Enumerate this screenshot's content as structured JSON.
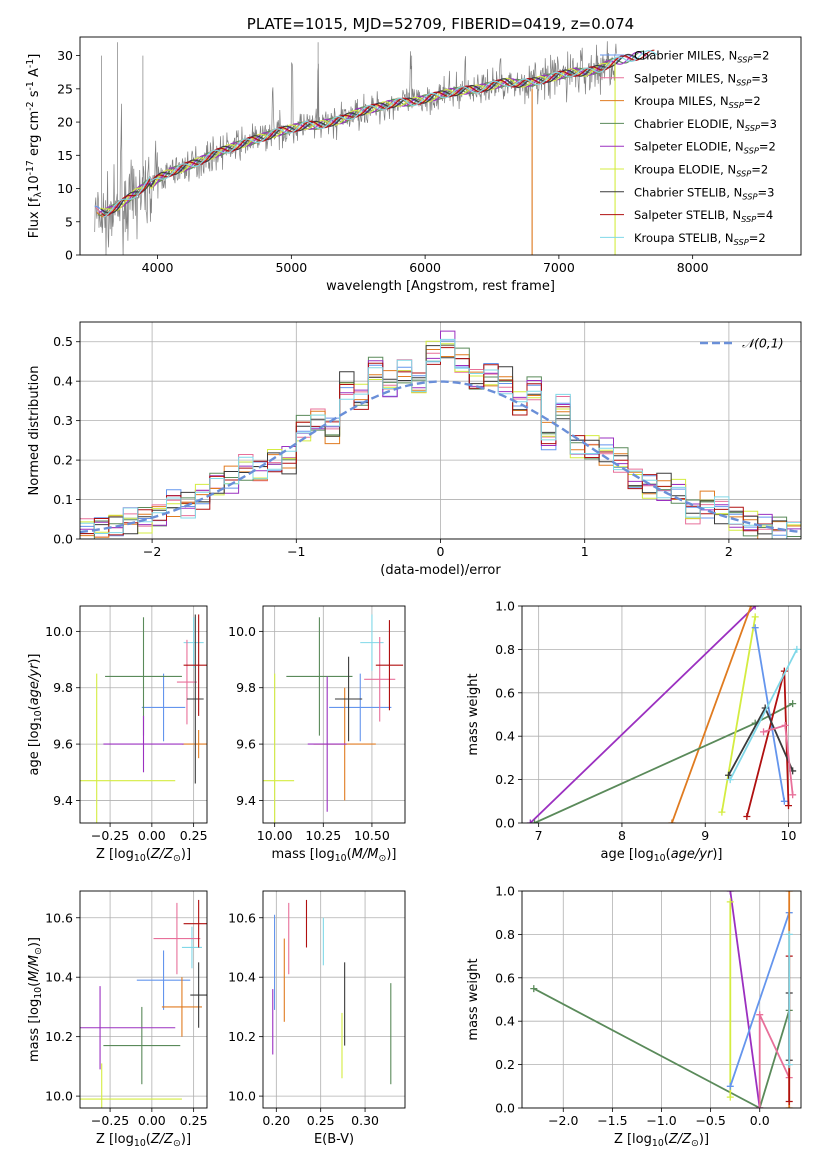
{
  "chart_data": [
    {
      "id": "spectrum",
      "type": "line",
      "title": "PLATE=1015, MJD=52709, FIBERID=0419, z=0.074",
      "xlabel": "wavelength [Angstrom, rest frame]",
      "ylabel": "Flux [f$_\\lambda$10$^{-17}$ erg cm$^{-2}$ s$^{-1}$ A$^{-1}$]",
      "xlim": [
        3420,
        8810
      ],
      "ylim": [
        0,
        32.8
      ],
      "xticks": [
        4000,
        5000,
        6000,
        7000,
        8000
      ],
      "yticks": [
        0,
        5,
        10,
        15,
        20,
        25,
        30
      ],
      "grid": false,
      "legend_position": "right",
      "continuum": {
        "x": [
          3530,
          3600,
          3700,
          3800,
          3900,
          4000,
          4100,
          4200,
          4300,
          4400,
          4500,
          4600,
          4700,
          4800,
          4900,
          5000,
          5100,
          5200,
          5300,
          5400,
          5500,
          5600,
          5700,
          5800,
          5900,
          6000,
          6100,
          6200,
          6300,
          6400,
          6500,
          6600,
          6700,
          6800,
          6900,
          7000,
          7100,
          7200,
          7300,
          7400,
          7500,
          7600,
          7700,
          7800,
          7900,
          8000,
          8100,
          8200
        ],
        "y": [
          6.0,
          5.5,
          6.5,
          8.0,
          9.5,
          11.5,
          12.5,
          13.2,
          14.0,
          15.0,
          15.8,
          16.5,
          17.2,
          17.8,
          18.5,
          19.0,
          19.5,
          19.5,
          20.0,
          20.5,
          21.5,
          22.0,
          22.5,
          23.0,
          23.0,
          23.5,
          24.0,
          24.5,
          24.8,
          25.0,
          25.5,
          26.0,
          25.8,
          26.0,
          26.5,
          27.0,
          27.5,
          27.5,
          28.0,
          29.0,
          29.5,
          30.0,
          30.2,
          30.5,
          30.8,
          31.0,
          31.0,
          31.0
        ]
      },
      "series": [
        {
          "name": "Chabrier MILES",
          "nssp": "2",
          "color": "#6495ed"
        },
        {
          "name": "Salpeter MILES",
          "nssp": "3",
          "color": "#e8709a"
        },
        {
          "name": "Kroupa MILES",
          "nssp": "2",
          "color": "#e07b20"
        },
        {
          "name": "Chabrier ELODIE",
          "nssp": "3",
          "color": "#5a8a5a"
        },
        {
          "name": "Salpeter ELODIE",
          "nssp": "2",
          "color": "#9b30c0"
        },
        {
          "name": "Kroupa ELODIE",
          "nssp": "2",
          "color": "#d4ec40"
        },
        {
          "name": "Chabrier STELIB",
          "nssp": "3",
          "color": "#3a3a3a"
        },
        {
          "name": "Salpeter STELIB",
          "nssp": "4",
          "color": "#b01010"
        },
        {
          "name": "Kroupa STELIB",
          "nssp": "2",
          "color": "#80d8e8"
        }
      ],
      "data_color": "#808080"
    },
    {
      "id": "residuals",
      "type": "line",
      "xlabel": "(data-model)/error",
      "ylabel": "Normed distribution",
      "xlim": [
        -2.5,
        2.5
      ],
      "ylim": [
        0,
        0.55
      ],
      "xticks": [
        -2,
        -1,
        0,
        1,
        2
      ],
      "yticks": [
        0.0,
        0.1,
        0.2,
        0.3,
        0.4,
        0.5
      ],
      "grid": true,
      "legend_position": "top-right",
      "reference": {
        "name": "$\\mathcal{N}(0,1)$",
        "color": "#6a8fd8"
      },
      "bin_centers": [
        -2.45,
        -2.35,
        -2.25,
        -2.15,
        -2.05,
        -1.95,
        -1.85,
        -1.75,
        -1.65,
        -1.55,
        -1.45,
        -1.35,
        -1.25,
        -1.15,
        -1.05,
        -0.95,
        -0.85,
        -0.75,
        -0.65,
        -0.55,
        -0.45,
        -0.35,
        -0.25,
        -0.15,
        -0.05,
        0.05,
        0.15,
        0.25,
        0.35,
        0.45,
        0.55,
        0.65,
        0.75,
        0.85,
        0.95,
        1.05,
        1.15,
        1.25,
        1.35,
        1.45,
        1.55,
        1.65,
        1.75,
        1.85,
        1.95,
        2.05,
        2.15,
        2.25,
        2.35,
        2.45
      ],
      "histogram": [
        0.02,
        0.03,
        0.04,
        0.05,
        0.05,
        0.06,
        0.09,
        0.09,
        0.11,
        0.14,
        0.15,
        0.18,
        0.17,
        0.2,
        0.2,
        0.28,
        0.3,
        0.27,
        0.39,
        0.36,
        0.43,
        0.39,
        0.42,
        0.39,
        0.47,
        0.49,
        0.45,
        0.4,
        0.41,
        0.4,
        0.34,
        0.38,
        0.26,
        0.33,
        0.23,
        0.23,
        0.22,
        0.2,
        0.15,
        0.13,
        0.13,
        0.12,
        0.07,
        0.09,
        0.07,
        0.05,
        0.04,
        0.03,
        0.03,
        0.02
      ]
    },
    {
      "id": "age-vs-Z",
      "type": "scatter",
      "xlabel": "Z [log$_{10}$($Z/Z_\\odot$)]",
      "ylabel": "age  [log$_{10}$($age/yr$)]",
      "xlim": [
        -0.43,
        0.33
      ],
      "ylim": [
        9.32,
        10.09
      ],
      "xticks": [
        -0.25,
        0.0,
        0.25
      ],
      "yticks": [
        9.4,
        9.6,
        9.8,
        10.0
      ],
      "grid": true,
      "points": [
        {
          "x": 0.07,
          "y": 9.73,
          "xerr": 0.13,
          "yerr": 0.12,
          "color": "#6495ed"
        },
        {
          "x": 0.25,
          "y": 9.96,
          "xerr": 0.06,
          "yerr": 0.09,
          "color": "#80d8e8"
        },
        {
          "x": 0.21,
          "y": 9.82,
          "xerr": 0.06,
          "yerr": 0.15,
          "color": "#e8709a"
        },
        {
          "x": 0.28,
          "y": 9.6,
          "xerr": 0.1,
          "yerr": 0.05,
          "color": "#e07b20"
        },
        {
          "x": -0.05,
          "y": 9.84,
          "xerr": 0.23,
          "yerr": 0.21,
          "color": "#5a8a5a"
        },
        {
          "x": -0.05,
          "y": 9.6,
          "xerr": 0.24,
          "yerr": 0.1,
          "color": "#9b30c0"
        },
        {
          "x": -0.33,
          "y": 9.47,
          "xerr": 0.47,
          "yerr": 0.38,
          "color": "#d4ec40"
        },
        {
          "x": 0.26,
          "y": 9.76,
          "xerr": 0.05,
          "yerr": 0.3,
          "color": "#3a3a3a"
        },
        {
          "x": 0.28,
          "y": 9.88,
          "xerr": 0.09,
          "yerr": 0.18,
          "color": "#b01010"
        }
      ]
    },
    {
      "id": "age-vs-mass",
      "type": "scatter",
      "xlabel": "mass [log$_{10}$($M/M_\\odot$)]",
      "ylabel": "",
      "xlim": [
        9.94,
        10.67
      ],
      "ylim": [
        9.32,
        10.09
      ],
      "xticks": [
        10.0,
        10.25,
        10.5
      ],
      "yticks": [
        9.4,
        9.6,
        9.8,
        10.0
      ],
      "grid": true,
      "points": [
        {
          "x": 10.44,
          "y": 9.73,
          "xerr": 0.16,
          "yerr": 0.12,
          "color": "#6495ed"
        },
        {
          "x": 10.5,
          "y": 9.96,
          "xerr": 0.06,
          "yerr": 0.1,
          "color": "#80d8e8"
        },
        {
          "x": 10.54,
          "y": 9.83,
          "xerr": 0.08,
          "yerr": 0.15,
          "color": "#e8709a"
        },
        {
          "x": 10.36,
          "y": 9.6,
          "xerr": 0.16,
          "yerr": 0.2,
          "color": "#e07b20"
        },
        {
          "x": 10.23,
          "y": 9.84,
          "xerr": 0.17,
          "yerr": 0.21,
          "color": "#5a8a5a"
        },
        {
          "x": 10.27,
          "y": 9.6,
          "xerr": 0.1,
          "yerr": 0.24,
          "color": "#9b30c0"
        },
        {
          "x": 10.0,
          "y": 9.47,
          "xerr": 0.1,
          "yerr": 0.38,
          "color": "#d4ec40"
        },
        {
          "x": 10.38,
          "y": 9.76,
          "xerr": 0.07,
          "yerr": 0.15,
          "color": "#3a3a3a"
        },
        {
          "x": 10.59,
          "y": 9.88,
          "xerr": 0.07,
          "yerr": 0.16,
          "color": "#b01010"
        }
      ]
    },
    {
      "id": "mass-weight-vs-age",
      "type": "line",
      "xlabel": "age  [log$_{10}$($age/yr$)]",
      "ylabel": "mass weight",
      "xlim": [
        6.8,
        10.15
      ],
      "ylim": [
        0,
        1.0
      ],
      "xticks": [
        7,
        8,
        9,
        10
      ],
      "yticks": [
        0.0,
        0.2,
        0.4,
        0.6,
        0.8,
        1.0
      ],
      "grid": true,
      "series": [
        {
          "color": "#9b30c0",
          "x": [
            6.9,
            9.6
          ],
          "y": [
            0.0,
            1.0
          ]
        },
        {
          "color": "#e07b20",
          "x": [
            8.6,
            9.55
          ],
          "y": [
            0.0,
            1.0
          ]
        },
        {
          "color": "#5a8a5a",
          "x": [
            6.95,
            9.6,
            10.05
          ],
          "y": [
            0.0,
            0.46,
            0.55
          ]
        },
        {
          "color": "#d4ec40",
          "x": [
            9.2,
            9.6
          ],
          "y": [
            0.05,
            0.95
          ]
        },
        {
          "color": "#6495ed",
          "x": [
            9.6,
            9.95
          ],
          "y": [
            0.9,
            0.1
          ]
        },
        {
          "color": "#b01010",
          "x": [
            9.5,
            9.95,
            10.0
          ],
          "y": [
            0.03,
            0.7,
            0.08
          ]
        },
        {
          "color": "#3a3a3a",
          "x": [
            9.28,
            9.72,
            10.05
          ],
          "y": [
            0.22,
            0.53,
            0.24
          ]
        },
        {
          "color": "#e8709a",
          "x": [
            9.7,
            9.96,
            10.05
          ],
          "y": [
            0.42,
            0.45,
            0.13
          ]
        },
        {
          "color": "#80d8e8",
          "x": [
            9.3,
            10.1
          ],
          "y": [
            0.2,
            0.8
          ]
        }
      ]
    },
    {
      "id": "mass-vs-Z",
      "type": "scatter",
      "xlabel": "Z [log$_{10}$($Z/Z_\\odot$)]",
      "ylabel": "mass [log$_{10}$($M/M_\\odot$)]",
      "xlim": [
        -0.43,
        0.33
      ],
      "ylim": [
        9.96,
        10.69
      ],
      "xticks": [
        -0.25,
        0.0,
        0.25
      ],
      "yticks": [
        10.0,
        10.2,
        10.4,
        10.6
      ],
      "grid": true,
      "points": [
        {
          "x": 0.07,
          "y": 10.39,
          "xerr": 0.16,
          "yerr": 0.1,
          "color": "#6495ed"
        },
        {
          "x": 0.24,
          "y": 10.5,
          "xerr": 0.06,
          "yerr": 0.07,
          "color": "#80d8e8"
        },
        {
          "x": 0.15,
          "y": 10.53,
          "xerr": 0.14,
          "yerr": 0.12,
          "color": "#e8709a"
        },
        {
          "x": 0.18,
          "y": 10.3,
          "xerr": 0.12,
          "yerr": 0.1,
          "color": "#e07b20"
        },
        {
          "x": -0.06,
          "y": 10.17,
          "xerr": 0.23,
          "yerr": 0.13,
          "color": "#5a8a5a"
        },
        {
          "x": -0.31,
          "y": 10.23,
          "xerr": 0.45,
          "yerr": 0.14,
          "color": "#9b30c0"
        },
        {
          "x": -0.3,
          "y": 9.99,
          "xerr": 0.48,
          "yerr": 0.12,
          "color": "#d4ec40"
        },
        {
          "x": 0.28,
          "y": 10.34,
          "xerr": 0.05,
          "yerr": 0.11,
          "color": "#3a3a3a"
        },
        {
          "x": 0.28,
          "y": 10.58,
          "xerr": 0.09,
          "yerr": 0.08,
          "color": "#b01010"
        }
      ]
    },
    {
      "id": "mass-vs-EBV",
      "type": "scatter",
      "xlabel": "E(B-V)",
      "ylabel": "",
      "xlim": [
        0.185,
        0.345
      ],
      "ylim": [
        9.96,
        10.69
      ],
      "xticks": [
        0.2,
        0.25,
        0.3
      ],
      "yticks": [
        10.0,
        10.2,
        10.4,
        10.6
      ],
      "grid": true,
      "points": [
        {
          "x": 0.198,
          "y": 10.45,
          "xerr": 0.0,
          "yerr": 0.16,
          "color": "#6495ed"
        },
        {
          "x": 0.253,
          "y": 10.52,
          "xerr": 0.0,
          "yerr": 0.08,
          "color": "#80d8e8"
        },
        {
          "x": 0.214,
          "y": 10.53,
          "xerr": 0.0,
          "yerr": 0.12,
          "color": "#e8709a"
        },
        {
          "x": 0.209,
          "y": 10.39,
          "xerr": 0.0,
          "yerr": 0.14,
          "color": "#e07b20"
        },
        {
          "x": 0.329,
          "y": 10.21,
          "xerr": 0.0,
          "yerr": 0.17,
          "color": "#5a8a5a"
        },
        {
          "x": 0.196,
          "y": 10.25,
          "xerr": 0.0,
          "yerr": 0.11,
          "color": "#9b30c0"
        },
        {
          "x": 0.274,
          "y": 10.17,
          "xerr": 0.0,
          "yerr": 0.11,
          "color": "#d4ec40"
        },
        {
          "x": 0.277,
          "y": 10.31,
          "xerr": 0.0,
          "yerr": 0.14,
          "color": "#3a3a3a"
        },
        {
          "x": 0.234,
          "y": 10.58,
          "xerr": 0.0,
          "yerr": 0.08,
          "color": "#b01010"
        }
      ]
    },
    {
      "id": "mass-weight-vs-Z",
      "type": "line",
      "xlabel": "Z [log$_{10}$($Z/Z_\\odot$)]",
      "ylabel": "mass weight",
      "xlim": [
        -2.42,
        0.42
      ],
      "ylim": [
        0,
        1.0
      ],
      "xticks": [
        -2.0,
        -1.5,
        -1.0,
        -0.5,
        0.0
      ],
      "yticks": [
        0.0,
        0.2,
        0.4,
        0.6,
        0.8,
        1.0
      ],
      "grid": true,
      "series": [
        {
          "color": "#5a8a5a",
          "x": [
            -2.3,
            0.0,
            0.3
          ],
          "y": [
            0.55,
            0.0,
            0.45
          ]
        },
        {
          "color": "#9b30c0",
          "x": [
            -0.3,
            0.0
          ],
          "y": [
            1.0,
            0.0
          ]
        },
        {
          "color": "#d4ec40",
          "x": [
            -0.3,
            -0.3
          ],
          "y": [
            0.95,
            0.05
          ]
        },
        {
          "color": "#6495ed",
          "x": [
            -0.3,
            0.3
          ],
          "y": [
            0.1,
            0.9
          ]
        },
        {
          "color": "#e8709a",
          "x": [
            0.0,
            0.0,
            0.3
          ],
          "y": [
            0.0,
            0.43,
            0.14
          ]
        },
        {
          "color": "#e07b20",
          "x": [
            0.3,
            0.3
          ],
          "y": [
            0.0,
            1.0
          ]
        },
        {
          "color": "#3a3a3a",
          "x": [
            0.3,
            0.3
          ],
          "y": [
            0.22,
            0.53
          ]
        },
        {
          "color": "#b01010",
          "x": [
            0.3,
            0.3
          ],
          "y": [
            0.03,
            0.7
          ]
        },
        {
          "color": "#80d8e8",
          "x": [
            0.3,
            0.3
          ],
          "y": [
            0.2,
            0.8
          ]
        }
      ]
    }
  ]
}
